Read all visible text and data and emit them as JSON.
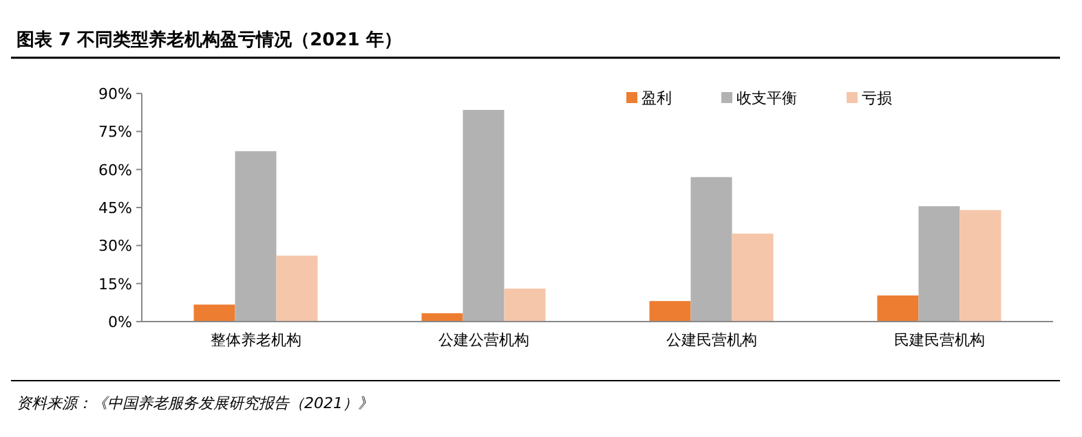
{
  "chart_data": {
    "type": "bar",
    "title": "图表 7    不同类型养老机构盈亏情况（2021 年）",
    "categories": [
      "整体养老机构",
      "公建公营机构",
      "公建民营机构",
      "民建民营机构"
    ],
    "series": [
      {
        "name": "盈利",
        "color": "#ed7d31",
        "values": [
          6.7,
          3.3,
          8.1,
          10.3
        ]
      },
      {
        "name": "收支平衡",
        "color": "#b2b2b2",
        "values": [
          67.2,
          83.5,
          57,
          45.5
        ]
      },
      {
        "name": "亏损",
        "color": "#f5c6a9",
        "values": [
          26,
          13,
          34.7,
          44
        ]
      }
    ],
    "ylim": [
      0,
      90
    ],
    "yticks": [
      {
        "value": 0,
        "label": "0%"
      },
      {
        "value": 15,
        "label": "15%"
      },
      {
        "value": 30,
        "label": "30%"
      },
      {
        "value": 45,
        "label": "45%"
      },
      {
        "value": 60,
        "label": "60%"
      },
      {
        "value": 75,
        "label": "75%"
      },
      {
        "value": 90,
        "label": "90%"
      }
    ],
    "grid": false,
    "legend": "top right",
    "annotations": [
      "资料来源：《中国养老服务发展研究报告（2021）》"
    ]
  }
}
